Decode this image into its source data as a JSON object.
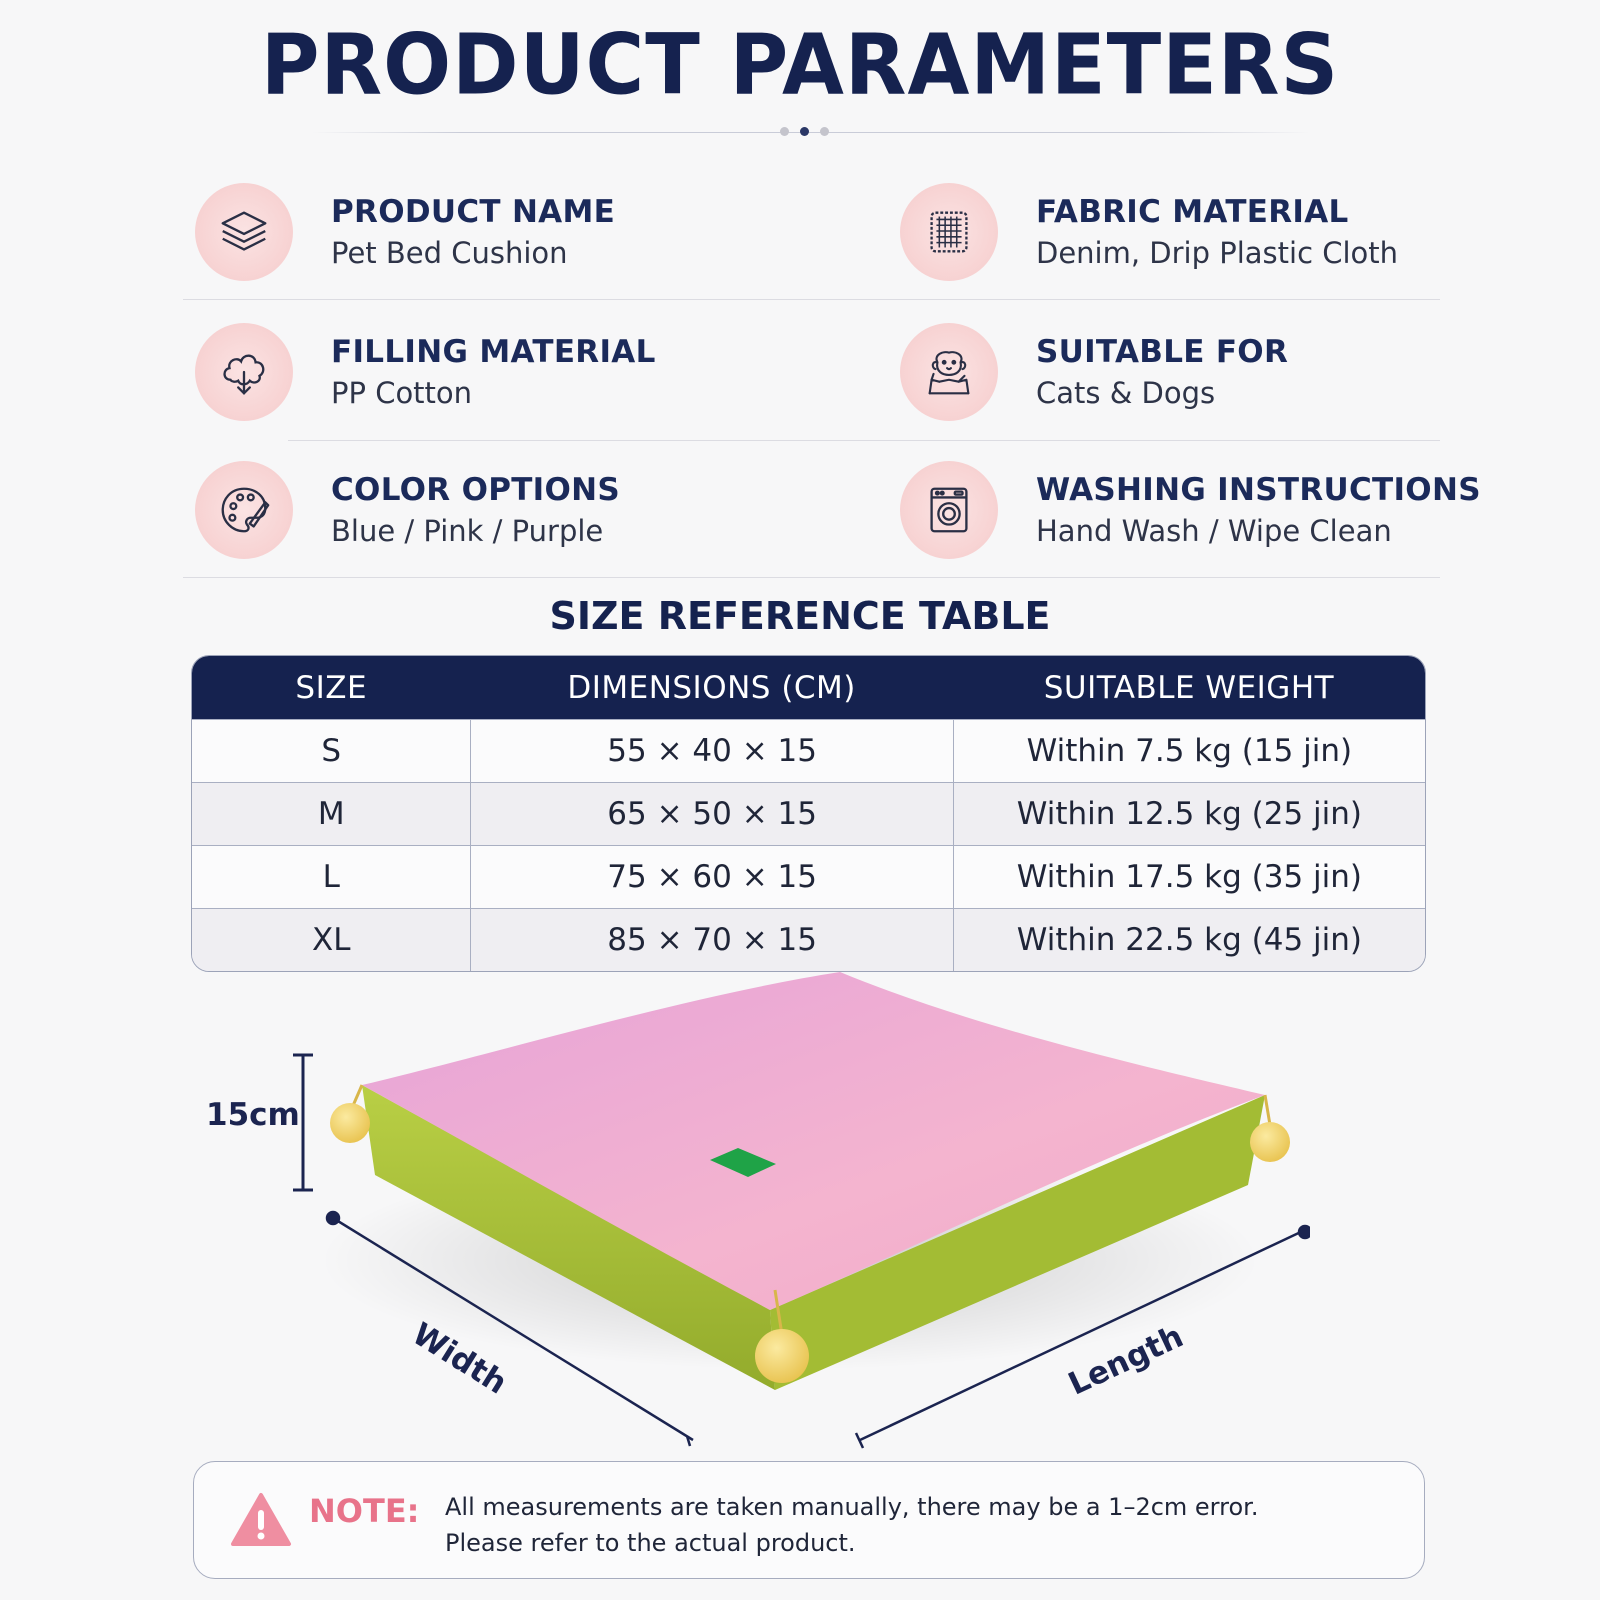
{
  "title": "PRODUCT PARAMETERS",
  "params": [
    {
      "label": "PRODUCT NAME",
      "value": "Pet Bed Cushion",
      "icon": "layers-icon"
    },
    {
      "label": "FABRIC MATERIAL",
      "value": "Denim, Drip Plastic Cloth",
      "icon": "fabric-icon"
    },
    {
      "label": "FILLING MATERIAL",
      "value": "PP Cotton",
      "icon": "cotton-icon"
    },
    {
      "label": "SUITABLE FOR",
      "value": "Cats & Dogs",
      "icon": "pets-icon"
    },
    {
      "label": "COLOR OPTIONS",
      "value": "Blue / Pink / Purple",
      "icon": "palette-icon"
    },
    {
      "label": "WASHING INSTRUCTIONS",
      "value": "Hand Wash / Wipe Clean",
      "icon": "washing-machine-icon"
    }
  ],
  "size_table": {
    "title": "SIZE REFERENCE TABLE",
    "headers": [
      "SIZE",
      "DIMENSIONS (CM)",
      "SUITABLE WEIGHT"
    ],
    "rows": [
      [
        "S",
        "55 × 40 × 15",
        "Within 7.5 kg (15 jin)"
      ],
      [
        "M",
        "65 × 50 × 15",
        "Within 12.5 kg (25 jin)"
      ],
      [
        "L",
        "75 × 60 × 15",
        "Within 17.5 kg (35 jin)"
      ],
      [
        "XL",
        "85 × 70 × 15",
        "Within 22.5 kg (45 jin)"
      ]
    ]
  },
  "diagram": {
    "height_label": "15cm",
    "width_label": "Width",
    "length_label": "Length"
  },
  "note": {
    "label": "NOTE:",
    "line1": "All measurements are taken manually, there may be a 1–2cm error.",
    "line2": "Please refer to the actual product."
  },
  "colors": {
    "navy": "#15224f",
    "icon_bg": "#f7d2d2",
    "note_accent": "#e8738a",
    "bed_top": "#f2aed0",
    "bed_side": "#a9c23a",
    "pompom": "#f3d66c"
  }
}
